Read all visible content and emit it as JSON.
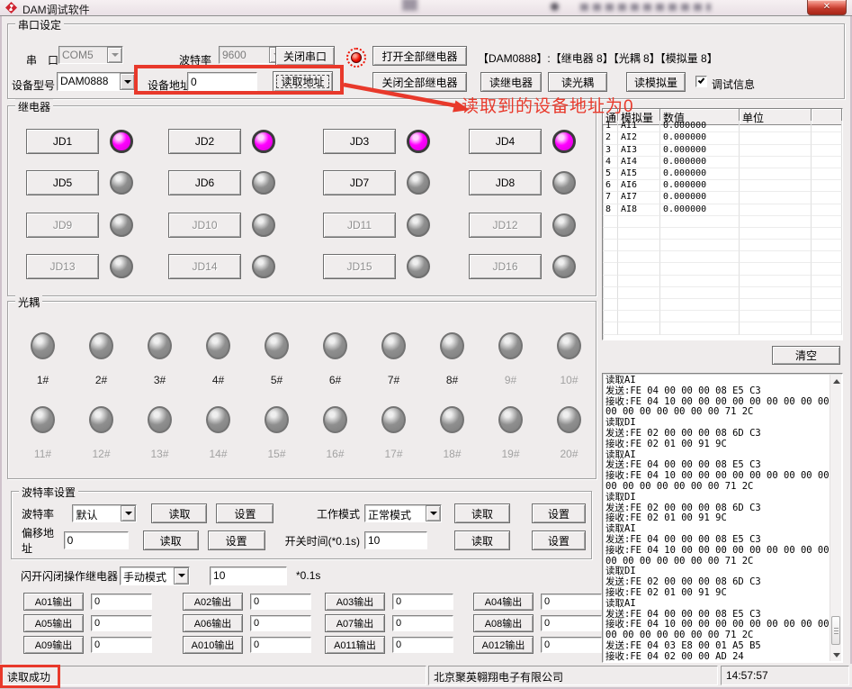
{
  "theme": {
    "accent_red": "#e8392b",
    "led_on": "#ff00ff",
    "led_off": "#8f8f8f",
    "serial_led": "#ee1000"
  },
  "window": {
    "title": "DAM调试软件",
    "close_glyph": "✕"
  },
  "serial_group": {
    "label": "串口设定",
    "port_label": "串　口",
    "port_value": "COM5",
    "baud_label": "波特率",
    "baud_value": "9600",
    "close_serial_btn": "关闭串口",
    "open_all_btn": "打开全部继电器",
    "device_summary": "【DAM0888】:【继电器  8】【光耦 8】【模拟量 8】",
    "model_label": "设备型号",
    "model_value": "DAM0888",
    "addr_label": "设备地址",
    "addr_value": "0",
    "read_addr_btn": "读取地址",
    "close_all_btn": "关闭全部继电器",
    "read_relay_btn": "读继电器",
    "read_opto_btn": "读光耦",
    "read_analog_btn": "读模拟量",
    "debug_checkbox_label": "调试信息",
    "debug_checked": true
  },
  "annotation": {
    "device_addr_note": "读取到的设备地址为0"
  },
  "relay_group": {
    "label": "继电器",
    "buttons": [
      {
        "label": "JD1",
        "on": true,
        "enabled": true
      },
      {
        "label": "JD2",
        "on": true,
        "enabled": true
      },
      {
        "label": "JD3",
        "on": true,
        "enabled": true
      },
      {
        "label": "JD4",
        "on": true,
        "enabled": true
      },
      {
        "label": "JD5",
        "on": false,
        "enabled": true
      },
      {
        "label": "JD6",
        "on": false,
        "enabled": true
      },
      {
        "label": "JD7",
        "on": false,
        "enabled": true
      },
      {
        "label": "JD8",
        "on": false,
        "enabled": true
      },
      {
        "label": "JD9",
        "on": false,
        "enabled": false
      },
      {
        "label": "JD10",
        "on": false,
        "enabled": false
      },
      {
        "label": "JD11",
        "on": false,
        "enabled": false
      },
      {
        "label": "JD12",
        "on": false,
        "enabled": false
      },
      {
        "label": "JD13",
        "on": false,
        "enabled": false
      },
      {
        "label": "JD14",
        "on": false,
        "enabled": false
      },
      {
        "label": "JD15",
        "on": false,
        "enabled": false
      },
      {
        "label": "JD16",
        "on": false,
        "enabled": false
      }
    ]
  },
  "analog_table": {
    "headers": [
      "通",
      "模拟量",
      "数值",
      "单位",
      ""
    ],
    "rows": [
      [
        "1",
        "AI1",
        "0.000000",
        ""
      ],
      [
        "2",
        "AI2",
        "0.000000",
        ""
      ],
      [
        "3",
        "AI3",
        "0.000000",
        ""
      ],
      [
        "4",
        "AI4",
        "0.000000",
        ""
      ],
      [
        "5",
        "AI5",
        "0.000000",
        ""
      ],
      [
        "6",
        "AI6",
        "0.000000",
        ""
      ],
      [
        "7",
        "AI7",
        "0.000000",
        ""
      ],
      [
        "8",
        "AI8",
        "0.000000",
        ""
      ]
    ],
    "empty_row_count": 10
  },
  "opto_group": {
    "label": "光耦",
    "row1": [
      {
        "label": "1#",
        "dim": false
      },
      {
        "label": "2#",
        "dim": false
      },
      {
        "label": "3#",
        "dim": false
      },
      {
        "label": "4#",
        "dim": false
      },
      {
        "label": "5#",
        "dim": false
      },
      {
        "label": "6#",
        "dim": false
      },
      {
        "label": "7#",
        "dim": false
      },
      {
        "label": "8#",
        "dim": false
      },
      {
        "label": "9#",
        "dim": true
      },
      {
        "label": "10#",
        "dim": true
      }
    ],
    "row2": [
      {
        "label": "11#",
        "dim": true
      },
      {
        "label": "12#",
        "dim": true
      },
      {
        "label": "13#",
        "dim": true
      },
      {
        "label": "14#",
        "dim": true
      },
      {
        "label": "15#",
        "dim": true
      },
      {
        "label": "16#",
        "dim": true
      },
      {
        "label": "17#",
        "dim": true
      },
      {
        "label": "18#",
        "dim": true
      },
      {
        "label": "19#",
        "dim": true
      },
      {
        "label": "20#",
        "dim": true
      }
    ]
  },
  "log_panel": {
    "clear_btn": "清空",
    "lines": [
      "读取AI",
      "发送:FE 04 00 00 00 08 E5 C3",
      "接收:FE 04 10 00 00 00 00 00 00 00 00 00",
      "00 00 00 00 00 00 00 71 2C",
      "读取DI",
      "发送:FE 02 00 00 00 08 6D C3",
      "接收:FE 02 01 00 91 9C",
      "读取AI",
      "发送:FE 04 00 00 00 08 E5 C3",
      "接收:FE 04 10 00 00 00 00 00 00 00 00 00",
      "00 00 00 00 00 00 00 71 2C",
      "读取DI",
      "发送:FE 02 00 00 00 08 6D C3",
      "接收:FE 02 01 00 91 9C",
      "读取AI",
      "发送:FE 04 00 00 00 08 E5 C3",
      "接收:FE 04 10 00 00 00 00 00 00 00 00 00",
      "00 00 00 00 00 00 00 71 2C",
      "读取DI",
      "发送:FE 02 00 00 00 08 6D C3",
      "接收:FE 02 01 00 91 9C",
      "读取AI",
      "发送:FE 04 00 00 00 08 E5 C3",
      "接收:FE 04 10 00 00 00 00 00 00 00 00 00",
      "00 00 00 00 00 00 00 71 2C",
      "发送:FE 04 03 E8 00 01 A5 B5",
      "接收:FE 04 02 00 00 AD 24"
    ]
  },
  "baud_group": {
    "label": "波特率设置",
    "baud_label": "波特率",
    "baud_value": "默认",
    "read1_btn": "读取",
    "set1_btn": "设置",
    "mode_label": "工作模式",
    "mode_value": "正常模式",
    "read2_btn": "读取",
    "set2_btn": "设置",
    "offset_label": "偏移地址",
    "offset_value": "0",
    "read3_btn": "读取",
    "set3_btn": "设置",
    "switch_label": "开关时间(*0.1s)",
    "switch_value": "10",
    "read4_btn": "读取",
    "set4_btn": "设置"
  },
  "flash_row": {
    "label": "闪开闪闭操作继电器",
    "mode_value": "手动模式",
    "time_value": "10",
    "unit_label": "*0.1s"
  },
  "outputs": {
    "items": [
      {
        "label": "A01输出",
        "value": "0"
      },
      {
        "label": "A02输出",
        "value": "0"
      },
      {
        "label": "A03输出",
        "value": "0"
      },
      {
        "label": "A04输出",
        "value": "0"
      },
      {
        "label": "A05输出",
        "value": "0"
      },
      {
        "label": "A06输出",
        "value": "0"
      },
      {
        "label": "A07输出",
        "value": "0"
      },
      {
        "label": "A08输出",
        "value": "0"
      },
      {
        "label": "A09输出",
        "value": "0"
      },
      {
        "label": "A010输出",
        "value": "0"
      },
      {
        "label": "A011输出",
        "value": "0"
      },
      {
        "label": "A012输出",
        "value": "0"
      }
    ]
  },
  "status_bar": {
    "message": "读取成功",
    "company": "北京聚英翱翔电子有限公司",
    "time": "14:57:57"
  }
}
